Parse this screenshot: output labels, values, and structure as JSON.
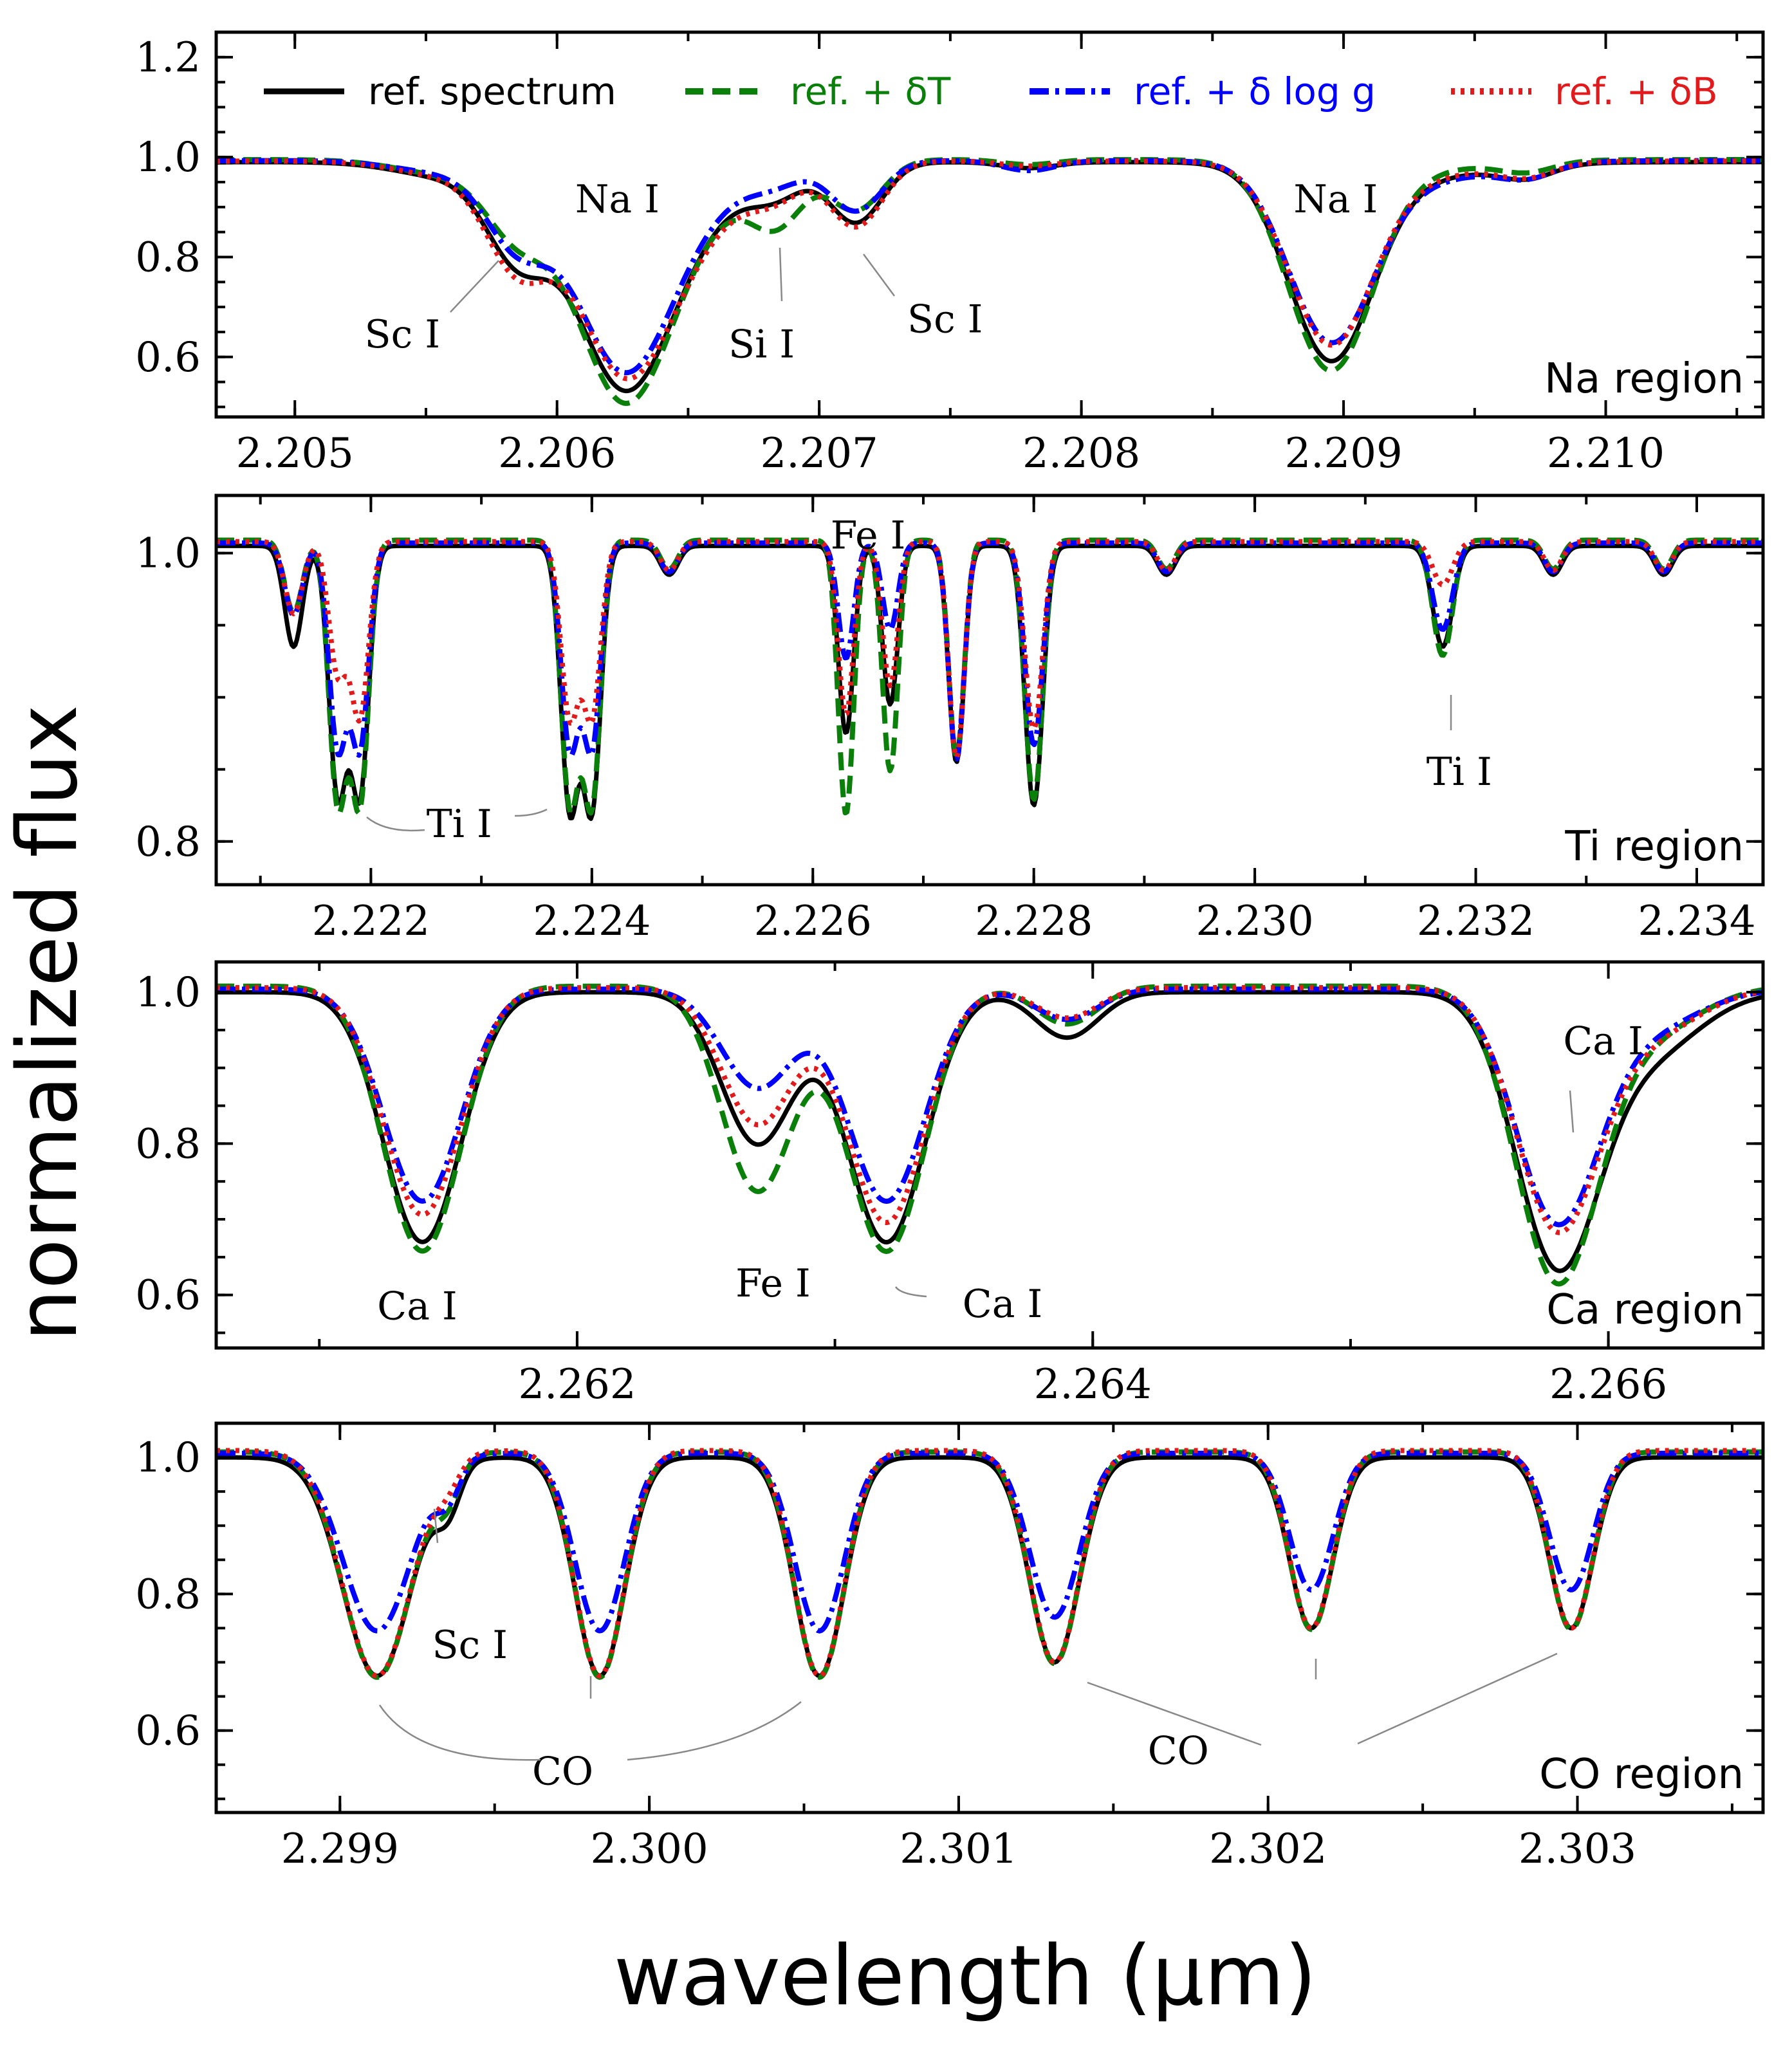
{
  "chart_data": {
    "type": "line",
    "xlabel": "wavelength (μm)",
    "ylabel": "normalized flux",
    "legend": {
      "placement": "top",
      "entries": [
        {
          "label": "ref. spectrum",
          "color": "#000000",
          "style": "solid"
        },
        {
          "label": "ref. + δT",
          "color": "#0a7f0a",
          "style": "dashed"
        },
        {
          "label": "ref. + δ log g",
          "color": "#0000ff",
          "style": "dashdot"
        },
        {
          "label": "ref. + δB",
          "color": "#e31a1c",
          "style": "dotted"
        }
      ]
    },
    "panels": [
      {
        "region": "Na region",
        "xlim": [
          2.2047,
          2.2106
        ],
        "ylim": [
          0.48,
          1.25
        ],
        "xticks": [
          2.205,
          2.206,
          2.207,
          2.208,
          2.209,
          2.21
        ],
        "xtick_labels": [
          "2.205",
          "2.206",
          "2.207",
          "2.208",
          "2.209",
          "2.210"
        ],
        "yticks": [
          0.6,
          0.8,
          1.0,
          1.2
        ],
        "ytick_labels": [
          "0.6",
          "0.8",
          "1.0",
          "1.2"
        ],
        "continuum": {
          "ref": 0.99,
          "dT": 0.995,
          "dlogg": 0.993,
          "dB": 0.992
        },
        "lines": [
          {
            "x": 2.2045,
            "w": 0.0001,
            "d": [
              0.005,
              0.004,
              0.005,
              0.005
            ]
          },
          {
            "x": 2.2056,
            "w": 0.0002,
            "d": [
              0.03,
              0.03,
              0.025,
              0.03
            ]
          },
          {
            "x": 2.20585,
            "w": 0.00012,
            "d": [
              0.17,
              0.13,
              0.15,
              0.19
            ]
          },
          {
            "x": 2.20625,
            "w": 0.00018,
            "d": [
              0.43,
              0.46,
              0.4,
              0.4
            ]
          },
          {
            "x": 2.20655,
            "w": 0.0002,
            "d": [
              0.08,
              0.08,
              0.07,
              0.1
            ]
          },
          {
            "x": 2.20684,
            "w": 0.0001,
            "d": [
              0.05,
              0.11,
              0.03,
              0.05
            ]
          },
          {
            "x": 2.20714,
            "w": 0.0001,
            "d": [
              0.12,
              0.1,
              0.1,
              0.13
            ]
          },
          {
            "x": 2.2078,
            "w": 0.0001,
            "d": [
              0.012,
              0.01,
              0.02,
              0.01
            ]
          },
          {
            "x": 2.20895,
            "w": 0.00016,
            "d": [
              0.38,
              0.41,
              0.34,
              0.35
            ]
          },
          {
            "x": 2.20925,
            "w": 0.0003,
            "d": [
              0.03,
              0.02,
              0.04,
              0.03
            ]
          },
          {
            "x": 2.2097,
            "w": 0.0001,
            "d": [
              0.025,
              0.02,
              0.025,
              0.025
            ]
          }
        ],
        "annotations": [
          {
            "text": "Na I",
            "x": 2.20623,
            "y": 0.915
          },
          {
            "text": "Na I",
            "x": 2.20897,
            "y": 0.915
          },
          {
            "text": "Sc I",
            "x": 2.20541,
            "y": 0.645
          },
          {
            "text": "Si I",
            "x": 2.20678,
            "y": 0.625
          },
          {
            "text": "Sc I",
            "x": 2.20748,
            "y": 0.675
          }
        ]
      },
      {
        "region": "Ti region",
        "xlim": [
          2.2206,
          2.2346
        ],
        "ylim": [
          0.77,
          1.04
        ],
        "xticks": [
          2.222,
          2.224,
          2.226,
          2.228,
          2.23,
          2.232,
          2.234
        ],
        "xtick_labels": [
          "2.222",
          "2.224",
          "2.226",
          "2.228",
          "2.230",
          "2.232",
          "2.234"
        ],
        "yticks": [
          0.8,
          1.0
        ],
        "ytick_labels": [
          "0.8",
          "1.0"
        ],
        "continuum": {
          "ref": 1.005,
          "dT": 1.009,
          "dlogg": 1.007,
          "dB": 1.008
        },
        "lines": [
          {
            "x": 2.2213,
            "w": 8e-05,
            "d": [
              0.07,
              0.05,
              0.05,
              0.05
            ]
          },
          {
            "x": 2.2217,
            "w": 8e-05,
            "d": [
              0.17,
              0.18,
              0.14,
              0.09
            ]
          },
          {
            "x": 2.2219,
            "w": 8e-05,
            "d": [
              0.17,
              0.18,
              0.14,
              0.12
            ]
          },
          {
            "x": 2.2238,
            "w": 8e-05,
            "d": [
              0.18,
              0.18,
              0.14,
              0.12
            ]
          },
          {
            "x": 2.224,
            "w": 8e-05,
            "d": [
              0.18,
              0.18,
              0.14,
              0.12
            ]
          },
          {
            "x": 2.2247,
            "w": 8e-05,
            "d": [
              0.02,
              0.02,
              0.02,
              0.02
            ]
          },
          {
            "x": 2.2263,
            "w": 7e-05,
            "d": [
              0.13,
              0.19,
              0.08,
              0.12
            ]
          },
          {
            "x": 2.2267,
            "w": 7e-05,
            "d": [
              0.11,
              0.16,
              0.06,
              0.1
            ]
          },
          {
            "x": 2.2273,
            "w": 7e-05,
            "d": [
              0.15,
              0.15,
              0.15,
              0.15
            ]
          },
          {
            "x": 2.228,
            "w": 8e-05,
            "d": [
              0.18,
              0.18,
              0.14,
              0.13
            ]
          },
          {
            "x": 2.2292,
            "w": 8e-05,
            "d": [
              0.02,
              0.02,
              0.02,
              0.02
            ]
          },
          {
            "x": 2.2317,
            "w": 9e-05,
            "d": [
              0.07,
              0.08,
              0.06,
              0.03
            ]
          },
          {
            "x": 2.2327,
            "w": 8e-05,
            "d": [
              0.02,
              0.02,
              0.02,
              0.02
            ]
          },
          {
            "x": 2.2337,
            "w": 8e-05,
            "d": [
              0.02,
              0.02,
              0.02,
              0.02
            ]
          }
        ],
        "annotations": [
          {
            "text": "Ti I",
            "x": 2.2228,
            "y": 0.812
          },
          {
            "text": "Fe I",
            "x": 2.2265,
            "y": 1.012
          },
          {
            "text": "Ti I",
            "x": 2.23185,
            "y": 0.848
          }
        ]
      },
      {
        "region": "Ca region",
        "xlim": [
          2.2606,
          2.2666
        ],
        "ylim": [
          0.53,
          1.04
        ],
        "xticks": [
          2.262,
          2.264,
          2.266
        ],
        "xtick_labels": [
          "2.262",
          "2.264",
          "2.266"
        ],
        "yticks": [
          0.6,
          0.8,
          1.0
        ],
        "ytick_labels": [
          "0.6",
          "0.8",
          "1.0"
        ],
        "continuum": {
          "ref": 1.0,
          "dT": 1.008,
          "dlogg": 1.004,
          "dB": 1.006
        },
        "lines": [
          {
            "x": 2.2614,
            "w": 0.00015,
            "d": [
              0.33,
              0.35,
              0.28,
              0.3
            ]
          },
          {
            "x": 2.2627,
            "w": 0.00014,
            "d": [
              0.2,
              0.27,
              0.13,
              0.18
            ]
          },
          {
            "x": 2.2632,
            "w": 0.00015,
            "d": [
              0.33,
              0.35,
              0.28,
              0.31
            ]
          },
          {
            "x": 2.2639,
            "w": 0.00012,
            "d": [
              0.06,
              0.05,
              0.04,
              0.04
            ]
          },
          {
            "x": 2.2658,
            "w": 0.00016,
            "d": [
              0.35,
              0.38,
              0.3,
              0.31
            ]
          },
          {
            "x": 2.26615,
            "w": 0.0002,
            "d": [
              0.08,
              0.06,
              0.05,
              0.06
            ]
          }
        ],
        "annotations": [
          {
            "text": "Ca I",
            "x": 2.26138,
            "y": 0.585
          },
          {
            "text": "Fe I",
            "x": 2.26276,
            "y": 0.615
          },
          {
            "text": "Ca I",
            "x": 2.26365,
            "y": 0.588
          },
          {
            "text": "Ca I",
            "x": 2.26598,
            "y": 0.935
          }
        ]
      },
      {
        "region": "CO region",
        "xlim": [
          2.2986,
          2.3036
        ],
        "ylim": [
          0.48,
          1.05
        ],
        "xticks": [
          2.299,
          2.3,
          2.301,
          2.302,
          2.303
        ],
        "xtick_labels": [
          "2.299",
          "2.300",
          "2.301",
          "2.302",
          "2.303"
        ],
        "yticks": [
          0.6,
          0.8,
          1.0
        ],
        "ytick_labels": [
          "0.6",
          "0.8",
          "1.0"
        ],
        "continuum": {
          "ref": 1.0,
          "dT": 1.008,
          "dlogg": 1.006,
          "dB": 1.01
        },
        "lines": [
          {
            "x": 2.29912,
            "w": 0.00011,
            "d": [
              0.32,
              0.33,
              0.26,
              0.33
            ]
          },
          {
            "x": 2.29935,
            "w": 4e-05,
            "d": [
              0.06,
              0.05,
              0.05,
              0.03
            ]
          },
          {
            "x": 2.29984,
            "w": 8e-05,
            "d": [
              0.32,
              0.33,
              0.26,
              0.33
            ]
          },
          {
            "x": 2.30055,
            "w": 8e-05,
            "d": [
              0.32,
              0.33,
              0.26,
              0.33
            ]
          },
          {
            "x": 2.30131,
            "w": 8e-05,
            "d": [
              0.3,
              0.31,
              0.24,
              0.31
            ]
          },
          {
            "x": 2.30214,
            "w": 7e-05,
            "d": [
              0.25,
              0.26,
              0.2,
              0.26
            ]
          },
          {
            "x": 2.30298,
            "w": 7e-05,
            "d": [
              0.25,
              0.26,
              0.2,
              0.26
            ]
          }
        ],
        "annotations": [
          {
            "text": "Sc I",
            "x": 2.29942,
            "y": 0.725
          },
          {
            "text": "CO",
            "x": 2.29972,
            "y": 0.54
          },
          {
            "text": "CO",
            "x": 2.30171,
            "y": 0.57
          }
        ]
      }
    ]
  }
}
